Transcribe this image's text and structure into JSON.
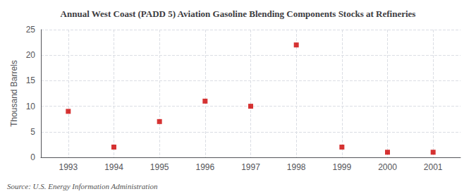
{
  "chart_data": {
    "type": "scatter",
    "title": "Annual West Coast (PADD 5) Aviation Gasoline Blending Components Stocks at Refineries",
    "ylabel": "Thousand Barrels",
    "annotations": [
      "Source: U.S. Energy Information Administration"
    ],
    "x": [
      1993,
      1994,
      1995,
      1996,
      1997,
      1998,
      1999,
      2000,
      2001
    ],
    "values": [
      9,
      2,
      7,
      11,
      10,
      22,
      2,
      1,
      1
    ],
    "xlim": [
      1992.4,
      2001.6
    ],
    "xticks": [
      1993,
      1994,
      1995,
      1996,
      1997,
      1998,
      1999,
      2000,
      2001
    ],
    "ylim": [
      0,
      25
    ],
    "yticks": [
      0,
      5,
      10,
      15,
      20,
      25
    ],
    "color": "#cc0000",
    "marker": "square",
    "grid": true
  }
}
